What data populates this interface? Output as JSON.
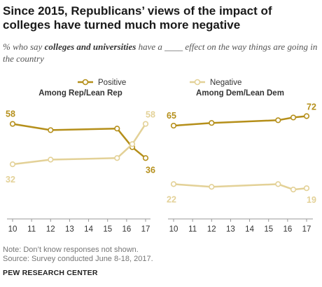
{
  "title": "Since 2015, Republicans’ views of the impact of colleges have turned much more negative",
  "subtitle": {
    "pre": "% who say ",
    "emphasis": "colleges and universities",
    "post": " have a ____ effect on the way things are going in the country"
  },
  "legend": {
    "positive": "Positive",
    "negative": "Negative"
  },
  "colors": {
    "positive": "#B58F1A",
    "negative": "#E3D197",
    "axis": "#999999"
  },
  "chart_data": [
    {
      "type": "line",
      "title": "Among Rep/Lean Rep",
      "x": [
        2010,
        2012,
        2015.5,
        2016.3,
        2017
      ],
      "x_ticks": [
        "10",
        "11",
        "12",
        "13",
        "14",
        "15",
        "16",
        "17"
      ],
      "xlim": [
        2010,
        2017
      ],
      "ylim": [
        0,
        70
      ],
      "series": [
        {
          "name": "Positive",
          "values": [
            58,
            54,
            55,
            43,
            36
          ],
          "start_label": "58",
          "end_label": "36"
        },
        {
          "name": "Negative",
          "values": [
            32,
            35,
            36,
            45,
            58
          ],
          "start_label": "32",
          "end_label": "58"
        }
      ]
    },
    {
      "type": "line",
      "title": "Among Dem/Lean Dem",
      "x": [
        2010,
        2012,
        2015.5,
        2016.3,
        2017
      ],
      "x_ticks": [
        "10",
        "11",
        "12",
        "13",
        "14",
        "15",
        "16",
        "17"
      ],
      "xlim": [
        2010,
        2017
      ],
      "ylim": [
        0,
        80
      ],
      "series": [
        {
          "name": "Positive",
          "values": [
            65,
            67,
            69,
            71,
            72
          ],
          "start_label": "65",
          "end_label": "72"
        },
        {
          "name": "Negative",
          "values": [
            22,
            20,
            22,
            18,
            19
          ],
          "start_label": "22",
          "end_label": "19"
        }
      ]
    }
  ],
  "note": "Note: Don’t know responses not shown.",
  "source": "Source: Survey conducted June 8-18, 2017.",
  "brand": "PEW RESEARCH CENTER"
}
